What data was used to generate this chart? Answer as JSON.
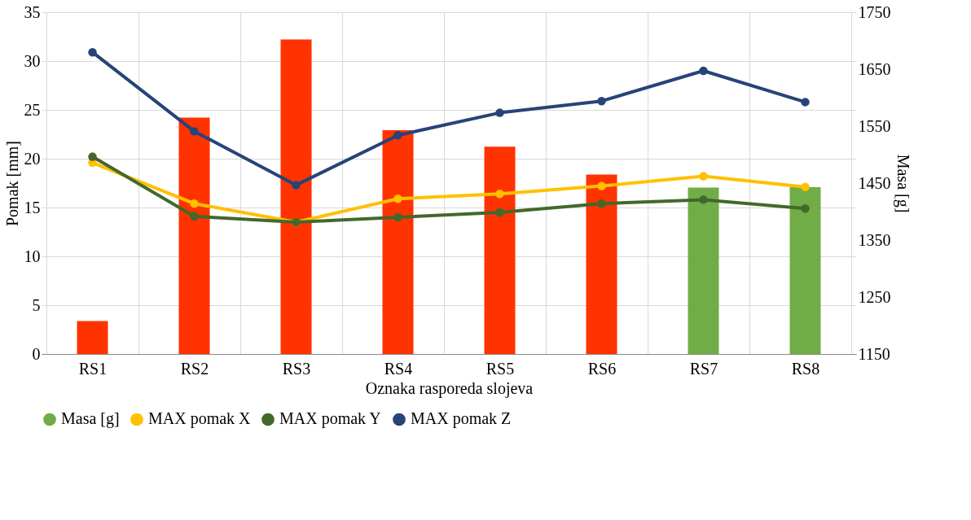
{
  "chart_data": {
    "type": "line",
    "xlabel": "Oznaka rasporeda slojeva",
    "ylabel": "Pomak [mm]",
    "y2label": "Masa [g]",
    "categories": [
      "RS1",
      "RS2",
      "RS3",
      "RS4",
      "RS5",
      "RS6",
      "RS7",
      "RS8"
    ],
    "series": [
      {
        "name": "Masa [g]",
        "type": "bar",
        "axis": "y2",
        "color": "#70ad47",
        "colors": [
          "#ff3300",
          "#ff3300",
          "#ff3300",
          "#ff3300",
          "#ff3300",
          "#ff3300",
          "#70ad47",
          "#70ad47"
        ],
        "values": [
          1208,
          1565,
          1702,
          1543,
          1514,
          1465,
          1442,
          1443
        ]
      },
      {
        "name": "MAX pomak X",
        "color": "#ffc000",
        "values": [
          19.6,
          15.4,
          13.5,
          15.9,
          16.4,
          17.2,
          18.2,
          17.1
        ]
      },
      {
        "name": "MAX pomak Y",
        "color": "#43682b",
        "values": [
          20.2,
          14.1,
          13.5,
          14.0,
          14.5,
          15.4,
          15.8,
          14.9
        ]
      },
      {
        "name": "MAX pomak Z",
        "color": "#264478",
        "values": [
          30.9,
          22.8,
          17.3,
          22.4,
          24.7,
          25.9,
          29.0,
          25.8
        ]
      }
    ],
    "ylim": [
      0,
      35
    ],
    "yticks": [
      0,
      5,
      10,
      15,
      20,
      25,
      30,
      35
    ],
    "y2lim": [
      1150,
      1750
    ],
    "y2ticks": [
      1150,
      1250,
      1350,
      1450,
      1550,
      1650,
      1750
    ],
    "grid": true,
    "legend": "bottom",
    "marker": "circle",
    "line_style": "solid"
  }
}
